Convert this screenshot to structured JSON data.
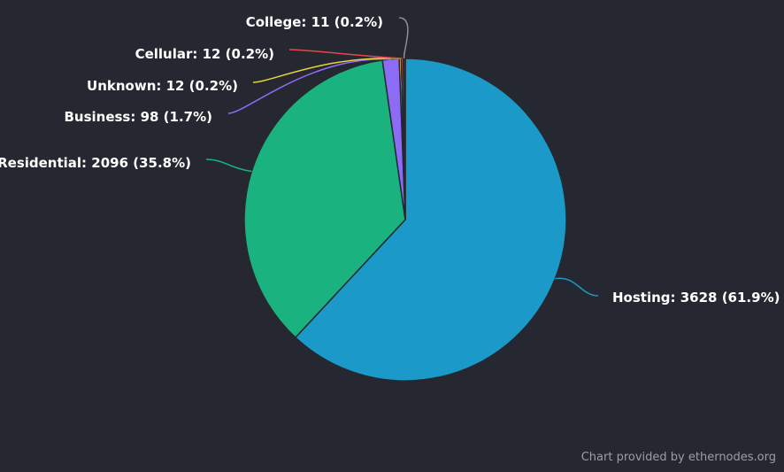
{
  "chart_data": {
    "type": "pie",
    "slices": [
      {
        "name": "Hosting",
        "value": 3628,
        "percent": "61.9%",
        "color": "#1b99c9",
        "label": "Hosting: 3628 (61.9%)"
      },
      {
        "name": "Residential",
        "value": 2096,
        "percent": "35.8%",
        "color": "#1ab37f",
        "label": "Residential: 2096 (35.8%)"
      },
      {
        "name": "Business",
        "value": 98,
        "percent": "1.7%",
        "color": "#8c6cf5",
        "label": "Business: 98 (1.7%)"
      },
      {
        "name": "Unknown",
        "value": 12,
        "percent": "0.2%",
        "color": "#e6d33a",
        "label": "Unknown: 12 (0.2%)"
      },
      {
        "name": "Cellular",
        "value": 12,
        "percent": "0.2%",
        "color": "#e2474b",
        "label": "Cellular: 12 (0.2%)"
      },
      {
        "name": "College",
        "value": 11,
        "percent": "0.2%",
        "color": "#3a3f4a",
        "label": "College: 11 (0.2%)"
      }
    ]
  },
  "credit": "Chart provided by ethernodes.org",
  "colors": {
    "background": "#252830",
    "label": "#ffffff",
    "credit": "#9a9ea6"
  }
}
